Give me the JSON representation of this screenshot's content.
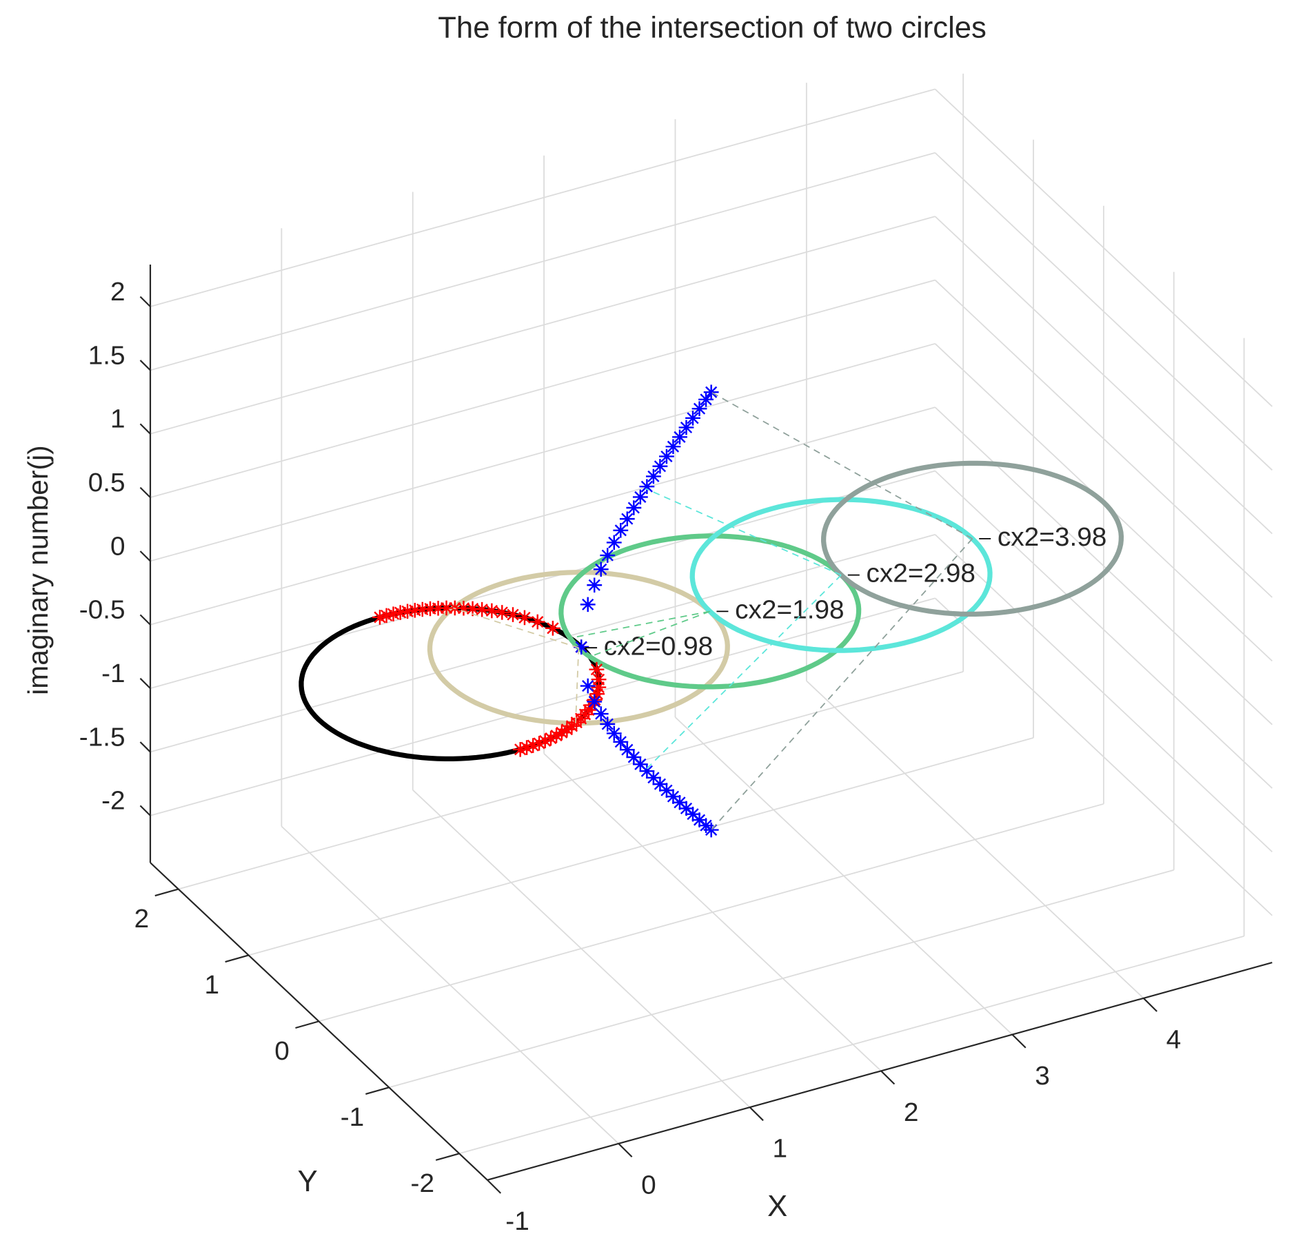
{
  "chart_data": {
    "type": "line3d",
    "title": "The form of the intersection of two circles",
    "xlabel": "X",
    "ylabel": "Y",
    "zlabel": "imaginary number(j)",
    "xlim": [
      -1,
      4.98
    ],
    "ylim": [
      -2.4,
      2.4
    ],
    "zlim": [
      -2.37,
      2.33
    ],
    "xticks": [
      -1,
      0,
      1,
      2,
      3,
      4
    ],
    "yticks": [
      -2,
      -1,
      0,
      1,
      2
    ],
    "zticks": [
      -2,
      -1.5,
      -1,
      -0.5,
      0,
      0.5,
      1,
      1.5,
      2
    ],
    "grid": true,
    "circles": [
      {
        "cx": 0,
        "cy": 0,
        "z": 0,
        "radius": 1,
        "color": "#000000"
      },
      {
        "label": "cx2=0.98",
        "cx": 0.98,
        "cy": 0,
        "z": 0,
        "radius": 1,
        "color": "#d3cba6",
        "to": [
          [
            0.49,
            0.872,
            0
          ],
          [
            0.49,
            -0.872,
            0
          ]
        ]
      },
      {
        "label": "cx2=1.98",
        "cx": 1.98,
        "cy": 0,
        "z": 0,
        "radius": 1,
        "color": "#5fca89",
        "to": [
          [
            0.99,
            0.141,
            0
          ],
          [
            0.99,
            -0.141,
            0
          ]
        ]
      },
      {
        "label": "cx2=2.98",
        "cx": 2.98,
        "cy": 0,
        "z": 0,
        "radius": 1,
        "color": "#5ce6da",
        "to": [
          [
            1.49,
            0,
            1.105
          ],
          [
            1.49,
            0,
            -1.105
          ]
        ]
      },
      {
        "label": "cx2=3.98",
        "cx": 3.98,
        "cy": 0,
        "z": 0,
        "radius": 1,
        "color": "#8fa19b",
        "to": [
          [
            1.99,
            0,
            1.72
          ],
          [
            1.99,
            0,
            -1.72
          ]
        ]
      }
    ],
    "series": [
      {
        "color": "#ff0000",
        "marker": "*",
        "x": [
          0,
          0.05,
          0.1,
          0.15,
          0.2,
          0.25,
          0.3,
          0.35,
          0.4,
          0.45,
          0.5,
          0.55,
          0.6,
          0.65,
          0.7,
          0.75,
          0.8,
          0.85,
          0.9,
          0.95,
          1
        ],
        "y": [
          1,
          0.999,
          0.995,
          0.989,
          0.98,
          0.968,
          0.954,
          0.937,
          0.917,
          0.893,
          0.866,
          0.835,
          0.8,
          0.76,
          0.714,
          0.661,
          0.6,
          0.527,
          0.436,
          0.312,
          0
        ],
        "z": [
          0,
          0,
          0,
          0,
          0,
          0,
          0,
          0,
          0,
          0,
          0,
          0,
          0,
          0,
          0,
          0,
          0,
          0,
          0,
          0,
          0
        ]
      },
      {
        "color": "#ff0000",
        "marker": "*",
        "x": [
          0,
          0.05,
          0.1,
          0.15,
          0.2,
          0.25,
          0.3,
          0.35,
          0.4,
          0.45,
          0.5,
          0.55,
          0.6,
          0.65,
          0.7,
          0.75,
          0.8,
          0.85,
          0.9,
          0.95,
          1
        ],
        "y": [
          -1,
          -0.999,
          -0.995,
          -0.989,
          -0.98,
          -0.968,
          -0.954,
          -0.937,
          -0.917,
          -0.893,
          -0.866,
          -0.835,
          -0.8,
          -0.76,
          -0.714,
          -0.661,
          -0.6,
          -0.527,
          -0.436,
          -0.312,
          0
        ],
        "z": [
          0,
          0,
          0,
          0,
          0,
          0,
          0,
          0,
          0,
          0,
          0,
          0,
          0,
          0,
          0,
          0,
          0,
          0,
          0,
          0,
          0
        ]
      },
      {
        "color": "#0000ff",
        "marker": "*",
        "x": [
          1,
          1.05,
          1.1,
          1.15,
          1.2,
          1.25,
          1.3,
          1.35,
          1.4,
          1.45,
          1.5,
          1.55,
          1.6,
          1.65,
          1.7,
          1.75,
          1.8,
          1.85,
          1.9,
          1.95,
          1.99
        ],
        "y": [
          0,
          0,
          0,
          0,
          0,
          0,
          0,
          0,
          0,
          0,
          0,
          0,
          0,
          0,
          0,
          0,
          0,
          0,
          0,
          0,
          0
        ],
        "z": [
          0,
          0.32,
          0.458,
          0.568,
          0.663,
          0.75,
          0.831,
          0.907,
          0.98,
          1.05,
          1.118,
          1.184,
          1.249,
          1.312,
          1.375,
          1.436,
          1.497,
          1.556,
          1.616,
          1.674,
          1.72
        ]
      },
      {
        "color": "#0000ff",
        "marker": "*",
        "x": [
          1,
          1.05,
          1.1,
          1.15,
          1.2,
          1.25,
          1.3,
          1.35,
          1.4,
          1.45,
          1.5,
          1.55,
          1.6,
          1.65,
          1.7,
          1.75,
          1.8,
          1.85,
          1.9,
          1.95,
          1.99
        ],
        "y": [
          0,
          0,
          0,
          0,
          0,
          0,
          0,
          0,
          0,
          0,
          0,
          0,
          0,
          0,
          0,
          0,
          0,
          0,
          0,
          0,
          0
        ],
        "z": [
          0,
          -0.32,
          -0.458,
          -0.568,
          -0.663,
          -0.75,
          -0.831,
          -0.907,
          -0.98,
          -1.05,
          -1.118,
          -1.184,
          -1.249,
          -1.312,
          -1.375,
          -1.436,
          -1.497,
          -1.556,
          -1.616,
          -1.674,
          -1.72
        ]
      }
    ]
  }
}
